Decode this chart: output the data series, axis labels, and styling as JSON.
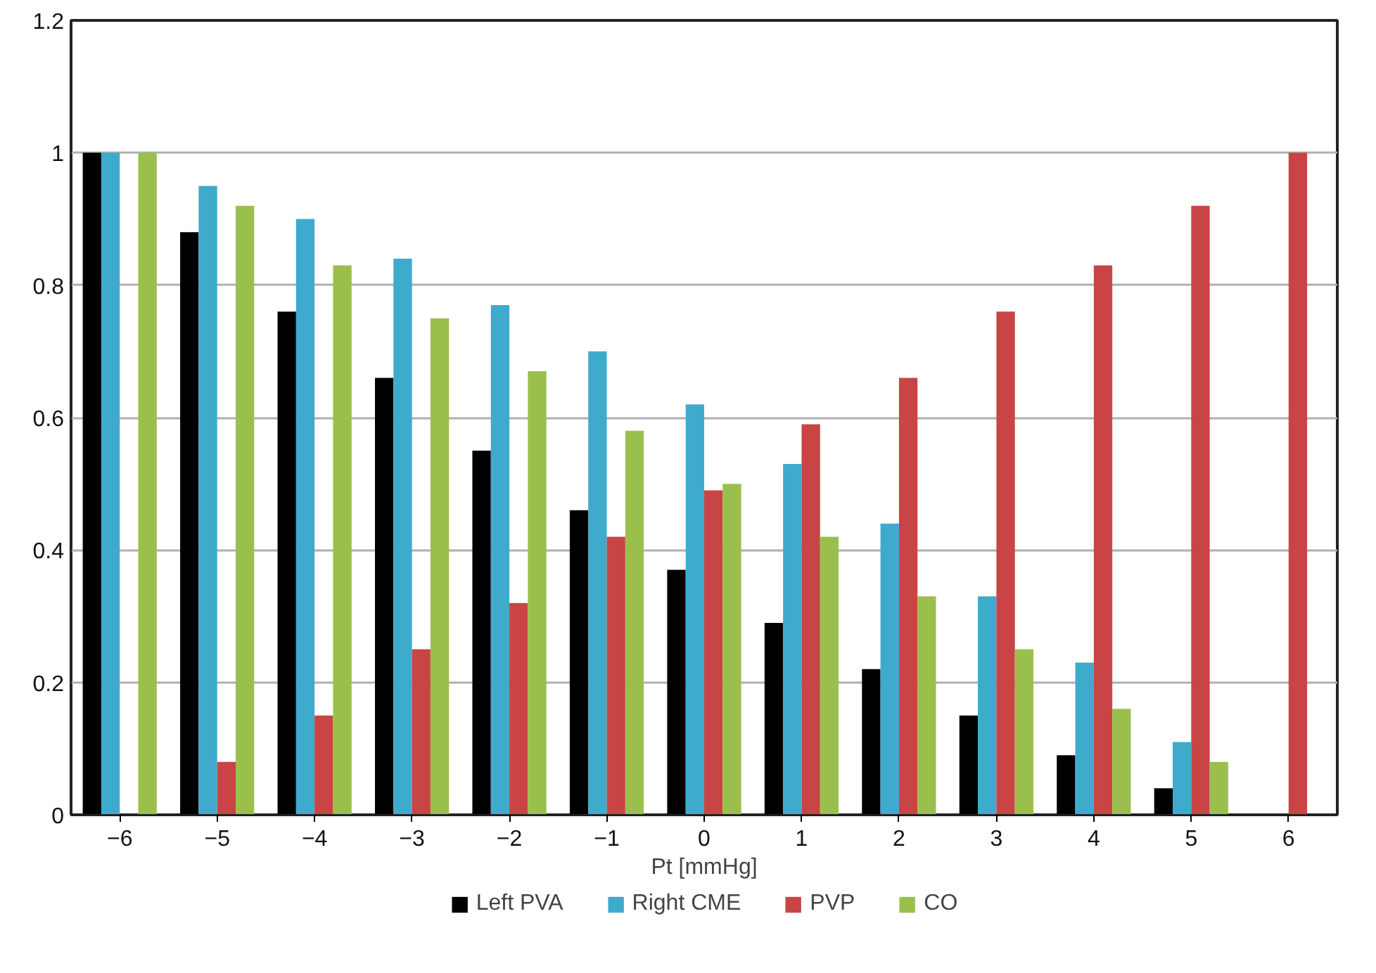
{
  "chart_data": {
    "type": "bar",
    "xlabel": "Pt [mmHg]",
    "categories": [
      "−6",
      "−5",
      "−4",
      "−3",
      "−2",
      "−1",
      "0",
      "1",
      "2",
      "3",
      "4",
      "5",
      "6"
    ],
    "series": [
      {
        "name": "Left PVA",
        "color": "#000000",
        "values": [
          1,
          0.88,
          0.76,
          0.66,
          0.55,
          0.46,
          0.37,
          0.29,
          0.22,
          0.15,
          0.09,
          0.04,
          0
        ]
      },
      {
        "name": "Right CME",
        "color": "#3eaacc",
        "values": [
          1,
          0.95,
          0.9,
          0.84,
          0.77,
          0.7,
          0.62,
          0.53,
          0.44,
          0.33,
          0.23,
          0.11,
          0
        ]
      },
      {
        "name": "PVP",
        "color": "#c94444",
        "values": [
          0,
          0.08,
          0.15,
          0.25,
          0.32,
          0.42,
          0.49,
          0.59,
          0.66,
          0.76,
          0.83,
          0.92,
          1
        ]
      },
      {
        "name": "CO",
        "color": "#9bbf4c",
        "values": [
          1,
          0.92,
          0.83,
          0.75,
          0.67,
          0.58,
          0.5,
          0.42,
          0.33,
          0.25,
          0.16,
          0.08,
          0
        ]
      }
    ],
    "ylim": [
      0,
      1.2
    ],
    "yticks": [
      0,
      0.2,
      0.4,
      0.6,
      0.8,
      1,
      1.2
    ],
    "grid": "y",
    "legend": "bottom"
  }
}
